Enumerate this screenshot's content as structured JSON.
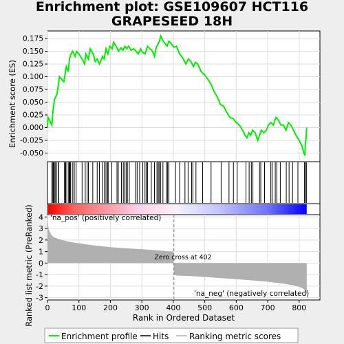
{
  "title_line1": "Enrichment plot: GSE109607 HCT116",
  "title_line2": "GRAPESEED 18H",
  "colors": {
    "enrichment_line": "#00ee00",
    "hits": "#000000",
    "ranking_fill": "#b0b0b0",
    "zero_cross_line": "#808080",
    "bar_positive": "#ff0000",
    "bar_negative": "#0000ff"
  },
  "chart_data": [
    {
      "type": "line",
      "name": "enrichment-profile",
      "ylabel": "Enrichment score (ES)",
      "xlim": [
        0,
        866
      ],
      "ylim": [
        -0.067,
        0.19
      ],
      "yticks": [
        -0.05,
        -0.025,
        0.0,
        0.025,
        0.05,
        0.075,
        0.1,
        0.125,
        0.15,
        0.175
      ],
      "ytick_labels": [
        "-0.050",
        "-0.025",
        "0.000",
        "0.025",
        "0.050",
        "0.075",
        "0.100",
        "0.125",
        "0.150",
        "0.175"
      ],
      "grid": true,
      "points": [
        [
          0,
          0.0
        ],
        [
          2,
          0.02
        ],
        [
          14,
          0.005
        ],
        [
          18,
          0.035
        ],
        [
          22,
          0.055
        ],
        [
          26,
          0.06
        ],
        [
          30,
          0.065
        ],
        [
          35,
          0.085
        ],
        [
          38,
          0.1
        ],
        [
          52,
          0.09
        ],
        [
          56,
          0.105
        ],
        [
          60,
          0.12
        ],
        [
          66,
          0.11
        ],
        [
          70,
          0.135
        ],
        [
          75,
          0.145
        ],
        [
          80,
          0.15
        ],
        [
          88,
          0.14
        ],
        [
          92,
          0.15
        ],
        [
          100,
          0.145
        ],
        [
          110,
          0.135
        ],
        [
          118,
          0.125
        ],
        [
          122,
          0.145
        ],
        [
          130,
          0.135
        ],
        [
          136,
          0.155
        ],
        [
          145,
          0.145
        ],
        [
          152,
          0.13
        ],
        [
          158,
          0.135
        ],
        [
          165,
          0.125
        ],
        [
          175,
          0.14
        ],
        [
          180,
          0.135
        ],
        [
          186,
          0.155
        ],
        [
          192,
          0.145
        ],
        [
          198,
          0.16
        ],
        [
          206,
          0.155
        ],
        [
          210,
          0.168
        ],
        [
          218,
          0.16
        ],
        [
          226,
          0.15
        ],
        [
          234,
          0.157
        ],
        [
          240,
          0.152
        ],
        [
          246,
          0.16
        ],
        [
          252,
          0.155
        ],
        [
          258,
          0.16
        ],
        [
          266,
          0.152
        ],
        [
          274,
          0.155
        ],
        [
          282,
          0.15
        ],
        [
          288,
          0.145
        ],
        [
          296,
          0.155
        ],
        [
          302,
          0.148
        ],
        [
          310,
          0.145
        ],
        [
          318,
          0.16
        ],
        [
          326,
          0.155
        ],
        [
          334,
          0.15
        ],
        [
          340,
          0.14
        ],
        [
          346,
          0.158
        ],
        [
          352,
          0.165
        ],
        [
          356,
          0.17
        ],
        [
          360,
          0.18
        ],
        [
          368,
          0.17
        ],
        [
          374,
          0.165
        ],
        [
          380,
          0.16
        ],
        [
          386,
          0.17
        ],
        [
          394,
          0.165
        ],
        [
          402,
          0.158
        ],
        [
          410,
          0.16
        ],
        [
          420,
          0.145
        ],
        [
          432,
          0.135
        ],
        [
          440,
          0.125
        ],
        [
          448,
          0.135
        ],
        [
          456,
          0.13
        ],
        [
          464,
          0.12
        ],
        [
          470,
          0.128
        ],
        [
          478,
          0.125
        ],
        [
          488,
          0.11
        ],
        [
          498,
          0.105
        ],
        [
          510,
          0.095
        ],
        [
          520,
          0.085
        ],
        [
          530,
          0.07
        ],
        [
          540,
          0.06
        ],
        [
          550,
          0.045
        ],
        [
          560,
          0.042
        ],
        [
          570,
          0.03
        ],
        [
          580,
          0.02
        ],
        [
          590,
          0.018
        ],
        [
          600,
          0.01
        ],
        [
          610,
          0.005
        ],
        [
          620,
          -0.005
        ],
        [
          628,
          -0.015
        ],
        [
          634,
          -0.02
        ],
        [
          640,
          -0.01
        ],
        [
          646,
          -0.015
        ],
        [
          652,
          -0.005
        ],
        [
          660,
          -0.01
        ],
        [
          668,
          -0.025
        ],
        [
          674,
          -0.015
        ],
        [
          680,
          -0.005
        ],
        [
          688,
          -0.01
        ],
        [
          696,
          -0.005
        ],
        [
          702,
          0.005
        ],
        [
          710,
          0.01
        ],
        [
          718,
          0.005
        ],
        [
          726,
          0.02
        ],
        [
          734,
          0.015
        ],
        [
          742,
          0.005
        ],
        [
          750,
          0.005
        ],
        [
          758,
          -0.005
        ],
        [
          766,
          0.01
        ],
        [
          774,
          0.005
        ],
        [
          782,
          -0.005
        ],
        [
          790,
          -0.015
        ],
        [
          800,
          -0.025
        ],
        [
          808,
          -0.035
        ],
        [
          814,
          -0.048
        ],
        [
          818,
          -0.055
        ],
        [
          820,
          -0.03
        ],
        [
          822,
          -0.02
        ],
        [
          824,
          0.0
        ]
      ]
    },
    {
      "type": "area",
      "name": "ranked-list-metric",
      "xlabel": "Rank in Ordered Dataset",
      "ylabel": "Ranked list metric (PreRanked)",
      "xlim": [
        0,
        866
      ],
      "ylim": [
        -3.2,
        4.2
      ],
      "xticks": [
        0,
        100,
        200,
        300,
        400,
        500,
        600,
        700,
        800
      ],
      "yticks": [
        -3,
        -2,
        -1,
        0,
        1,
        2,
        3,
        4
      ],
      "grid": true,
      "points": [
        [
          0,
          4.0
        ],
        [
          4,
          2.9
        ],
        [
          12,
          2.45
        ],
        [
          20,
          2.25
        ],
        [
          40,
          2.05
        ],
        [
          60,
          1.9
        ],
        [
          80,
          1.8
        ],
        [
          100,
          1.72
        ],
        [
          150,
          1.52
        ],
        [
          200,
          1.38
        ],
        [
          250,
          1.28
        ],
        [
          300,
          1.2
        ],
        [
          350,
          1.1
        ],
        [
          395,
          1.0
        ],
        [
          401,
          1.0
        ],
        [
          402,
          -1.0
        ],
        [
          410,
          -1.08
        ],
        [
          450,
          -1.12
        ],
        [
          500,
          -1.2
        ],
        [
          550,
          -1.3
        ],
        [
          600,
          -1.4
        ],
        [
          650,
          -1.5
        ],
        [
          700,
          -1.62
        ],
        [
          750,
          -1.78
        ],
        [
          780,
          -1.92
        ],
        [
          800,
          -2.05
        ],
        [
          815,
          -2.25
        ],
        [
          822,
          -2.55
        ],
        [
          824,
          -2.75
        ]
      ],
      "zero_cross_rank": 402,
      "annotations": [
        "Zero cross at 402",
        "'na_pos' (positively correlated)",
        "'na_neg' (negatively correlated)"
      ]
    }
  ],
  "hits": [
    14,
    17,
    19,
    20,
    22,
    26,
    28,
    34,
    35,
    54,
    57,
    59,
    66,
    69,
    71,
    73,
    79,
    84,
    85,
    91,
    110,
    120,
    126,
    130,
    144,
    158,
    165,
    175,
    181,
    186,
    191,
    193,
    204,
    221,
    225,
    235,
    241,
    246,
    250,
    254,
    260,
    280,
    285,
    293,
    303,
    310,
    314,
    318,
    330,
    340,
    348,
    352,
    355,
    360,
    367,
    378,
    382,
    386,
    407,
    420,
    437,
    447,
    458,
    462,
    472,
    493,
    520,
    552,
    577,
    591,
    603,
    631,
    641,
    648,
    653,
    674,
    678,
    690,
    710,
    714,
    724,
    729,
    740,
    759,
    768,
    779,
    796,
    817,
    821,
    823
  ],
  "labels": {
    "zero_cross": "Zero cross at 402",
    "na_pos": "'na_pos' (positively correlated)",
    "na_neg": "'na_neg' (negatively correlated)",
    "xlabel": "Rank in Ordered Dataset",
    "ylabel_top": "Enrichment score (ES)",
    "ylabel_bottom": "Ranked list metric (PreRanked)"
  },
  "legend": {
    "placement": "bottom",
    "items": [
      "Enrichment profile",
      "Hits",
      "Ranking metric scores"
    ]
  }
}
